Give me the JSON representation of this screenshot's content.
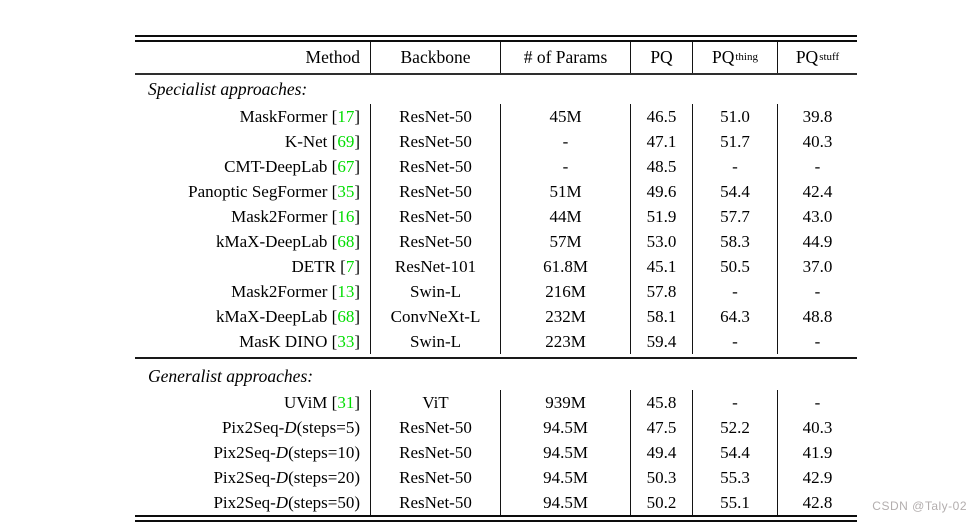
{
  "colors": {
    "citation": "#00dd00",
    "watermark": "#b3aeae"
  },
  "watermark": "CSDN @Taly-02",
  "table": {
    "header": [
      {
        "label": "Method"
      },
      {
        "label": "Backbone"
      },
      {
        "label": "# of Params"
      },
      {
        "label": "PQ"
      },
      {
        "label": "PQ",
        "sup": "thing"
      },
      {
        "label": "PQ",
        "sup": "stuff"
      }
    ],
    "sections": [
      {
        "title": "Specialist approaches:",
        "rows": [
          {
            "m1": "MaskFormer",
            "cite": "17",
            "backbone": "ResNet-50",
            "params": "45M",
            "pq": "46.5",
            "pqt": "51.0",
            "pqs": "39.8"
          },
          {
            "m1": "K-Net",
            "cite": "69",
            "backbone": "ResNet-50",
            "params": "-",
            "pq": "47.1",
            "pqt": "51.7",
            "pqs": "40.3"
          },
          {
            "m1": "CMT-DeepLab",
            "cite": "67",
            "backbone": "ResNet-50",
            "params": "-",
            "pq": "48.5",
            "pqt": "-",
            "pqs": "-"
          },
          {
            "m1": "Panoptic SegFormer",
            "cite": "35",
            "backbone": "ResNet-50",
            "params": "51M",
            "pq": "49.6",
            "pqt": "54.4",
            "pqs": "42.4"
          },
          {
            "m1": "Mask2Former",
            "cite": "16",
            "backbone": "ResNet-50",
            "params": "44M",
            "pq": "51.9",
            "pqt": "57.7",
            "pqs": "43.0"
          },
          {
            "m1": "kMaX-DeepLab",
            "cite": "68",
            "backbone": "ResNet-50",
            "params": "57M",
            "pq": "53.0",
            "pqt": "58.3",
            "pqs": "44.9"
          },
          {
            "m1": "DETR",
            "cite": "7",
            "backbone": "ResNet-101",
            "params": "61.8M",
            "pq": "45.1",
            "pqt": "50.5",
            "pqs": "37.0"
          },
          {
            "m1": "Mask2Former",
            "cite": "13",
            "backbone": "Swin-L",
            "params": "216M",
            "pq": "57.8",
            "pqt": "-",
            "pqs": "-"
          },
          {
            "m1": "kMaX-DeepLab",
            "cite": "68",
            "backbone": "ConvNeXt-L",
            "params": "232M",
            "pq": "58.1",
            "pqt": "64.3",
            "pqs": "48.8"
          },
          {
            "m1": "MasK DINO",
            "cite": "33",
            "backbone": "Swin-L",
            "params": "223M",
            "pq": "59.4",
            "pqt": "-",
            "pqs": "-"
          }
        ]
      },
      {
        "title": "Generalist approaches:",
        "rows": [
          {
            "m1": "UViM",
            "cite": "31",
            "backbone": "ViT",
            "params": "939M",
            "pq": "45.8",
            "pqt": "-",
            "pqs": "-"
          },
          {
            "m1": "Pix2Seq-",
            "cal": "D",
            "m2": " (steps=5)",
            "backbone": "ResNet-50",
            "params": "94.5M",
            "pq": "47.5",
            "pqt": "52.2",
            "pqs": "40.3"
          },
          {
            "m1": "Pix2Seq-",
            "cal": "D",
            "m2": " (steps=10)",
            "backbone": "ResNet-50",
            "params": "94.5M",
            "pq": "49.4",
            "pqt": "54.4",
            "pqs": "41.9"
          },
          {
            "m1": "Pix2Seq-",
            "cal": "D",
            "m2": " (steps=20)",
            "backbone": "ResNet-50",
            "params": "94.5M",
            "pq": "50.3",
            "pqt": "55.3",
            "pqs": "42.9"
          },
          {
            "m1": "Pix2Seq-",
            "cal": "D",
            "m2": " (steps=50)",
            "backbone": "ResNet-50",
            "params": "94.5M",
            "pq": "50.2",
            "pqt": "55.1",
            "pqs": "42.8"
          }
        ]
      }
    ]
  }
}
